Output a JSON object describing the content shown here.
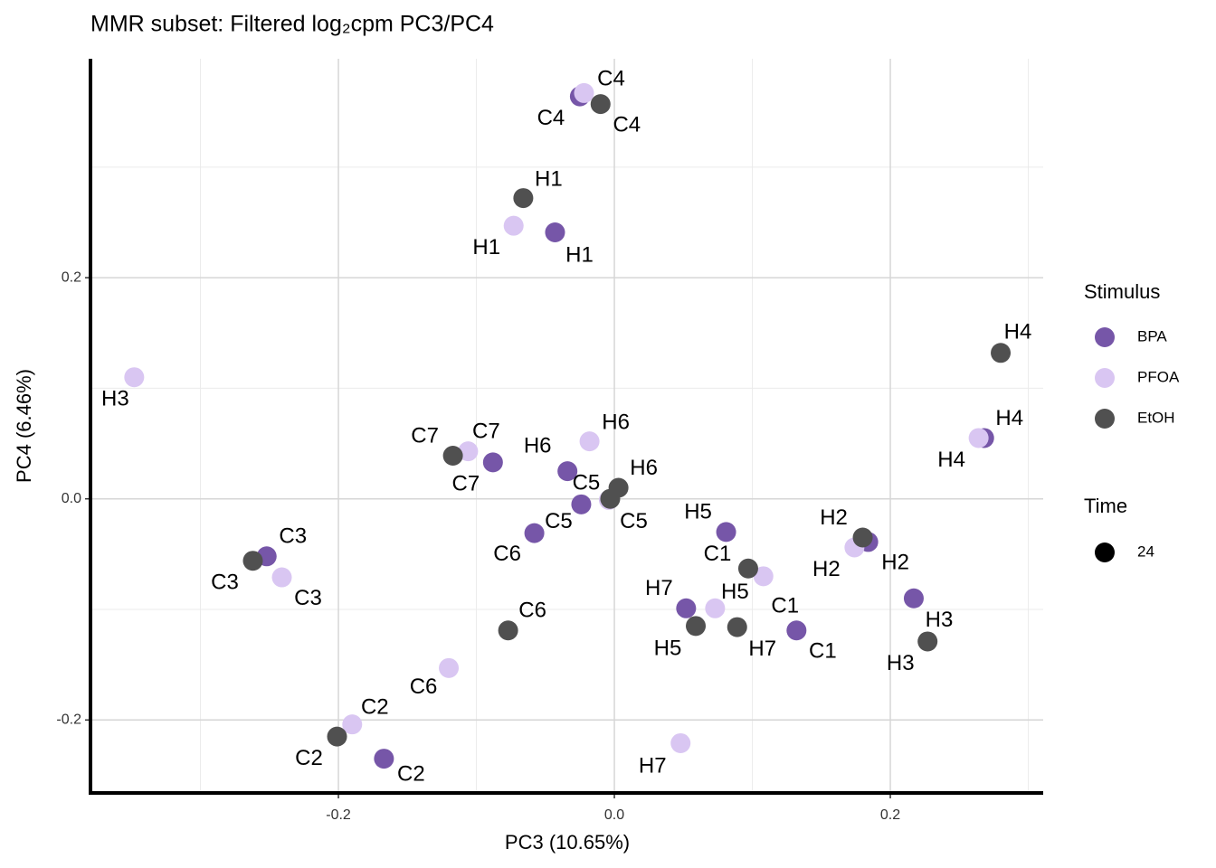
{
  "chart_data": {
    "type": "scatter",
    "title": "MMR subset: Filtered log₂cpm PC3/PC4",
    "x_label": "PC3 (10.65%)",
    "y_label": "PC4 (6.46%)",
    "xlim": [
      -0.3797,
      0.3108
    ],
    "ylim": [
      -0.266,
      0.398
    ],
    "xticks": [
      -0.2,
      {
        "value": 0,
        "label": "0.0"
      },
      0.2
    ],
    "yticks": [
      -0.2,
      {
        "value": 0,
        "label": "0.0"
      },
      0.2
    ],
    "x_minor_ticks": [
      -0.3,
      -0.1,
      0.1,
      0.3
    ],
    "y_minor_ticks": [
      -0.1,
      0.1,
      0.3
    ],
    "grid": true,
    "legend_position": "right",
    "legend_title": "Stimulus",
    "size_legend": {
      "title": "Time",
      "labels": [
        "24"
      ]
    },
    "series": [
      {
        "name": "BPA",
        "color": "#7656a8",
        "labels": [
          "C4",
          "H1",
          "C7",
          "H6",
          "C5",
          "C6",
          "C3",
          "C2",
          "H5",
          "H7",
          "C1",
          "H2",
          "H3",
          "H4"
        ],
        "x": [
          -0.025,
          -0.043,
          -0.088,
          -0.034,
          -0.024,
          -0.058,
          -0.252,
          -0.167,
          0.081,
          0.052,
          0.132,
          0.184,
          0.217,
          0.268
        ],
        "y": [
          0.364,
          0.241,
          0.033,
          0.025,
          -0.005,
          -0.031,
          -0.052,
          -0.235,
          -0.03,
          -0.099,
          -0.119,
          -0.039,
          -0.09,
          0.055
        ]
      },
      {
        "name": "PFOA",
        "color": "#d9c6f2",
        "labels": [
          "C4",
          "H1",
          "H3",
          "C7",
          "H6",
          "C5",
          "C3",
          "C6",
          "C2",
          "H5",
          "C1",
          "H2",
          "H7",
          "H4"
        ],
        "x": [
          -0.022,
          -0.073,
          -0.348,
          -0.106,
          -0.018,
          -0.004,
          -0.241,
          -0.12,
          -0.19,
          0.073,
          0.108,
          0.174,
          0.048,
          0.264
        ],
        "y": [
          0.367,
          0.247,
          0.11,
          0.043,
          0.052,
          -0.001,
          -0.071,
          -0.153,
          -0.204,
          -0.099,
          -0.07,
          -0.044,
          -0.221,
          0.055
        ]
      },
      {
        "name": "EtOH",
        "color": "#505050",
        "labels": [
          "C4",
          "H1",
          "C7",
          "H6",
          "C5",
          "C6",
          "C3",
          "C2",
          "H5",
          "H7",
          "C1",
          "H2",
          "H3",
          "H4"
        ],
        "x": [
          -0.01,
          -0.066,
          -0.117,
          0.003,
          -0.003,
          -0.077,
          -0.262,
          -0.201,
          0.059,
          0.089,
          0.097,
          0.18,
          0.227,
          0.28
        ],
        "y": [
          0.357,
          0.272,
          0.039,
          0.01,
          0.0,
          -0.119,
          -0.056,
          -0.215,
          -0.115,
          -0.116,
          -0.063,
          -0.035,
          -0.129,
          0.132
        ]
      }
    ]
  }
}
